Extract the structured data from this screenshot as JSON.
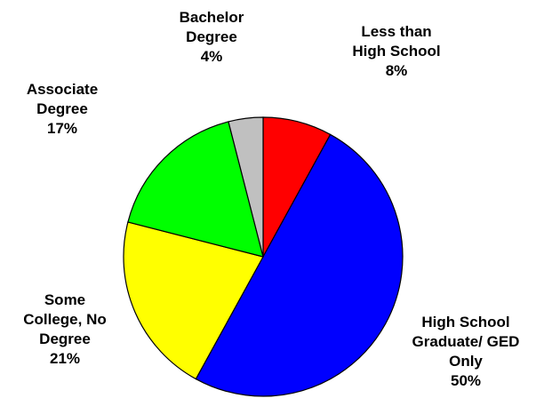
{
  "chart_data": {
    "type": "pie",
    "title": "",
    "legend": "none",
    "slices": [
      {
        "label_lines": [
          "Less than",
          "High School"
        ],
        "value": 8,
        "value_label": "8%",
        "color": "#ff0000"
      },
      {
        "label_lines": [
          "High School",
          "Graduate/ GED",
          "Only"
        ],
        "value": 50,
        "value_label": "50%",
        "color": "#0000ff"
      },
      {
        "label_lines": [
          "Some",
          "College, No",
          "Degree"
        ],
        "value": 21,
        "value_label": "21%",
        "color": "#ffff00"
      },
      {
        "label_lines": [
          "Associate",
          "Degree"
        ],
        "value": 17,
        "value_label": "17%",
        "color": "#00ff00"
      },
      {
        "label_lines": [
          "Bachelor",
          "Degree"
        ],
        "value": 4,
        "value_label": "4%",
        "color": "#c0c0c0"
      }
    ]
  }
}
